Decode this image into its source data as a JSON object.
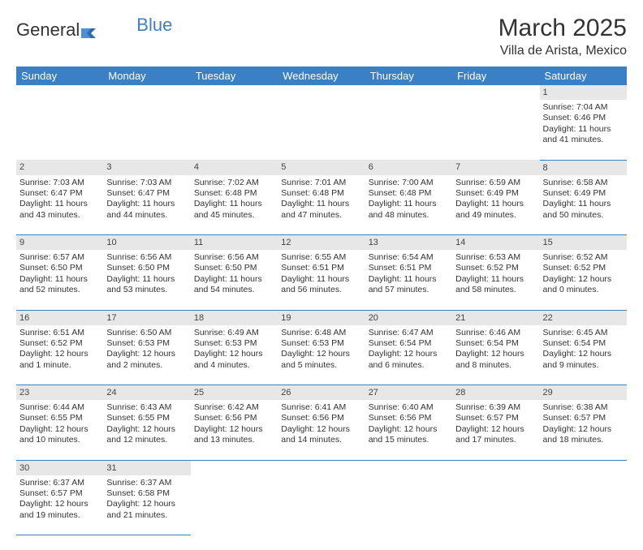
{
  "brand": {
    "part1": "General",
    "part2": "Blue"
  },
  "title": "March 2025",
  "location": "Villa de Arista, Mexico",
  "weekdays": [
    "Sunday",
    "Monday",
    "Tuesday",
    "Wednesday",
    "Thursday",
    "Friday",
    "Saturday"
  ],
  "colors": {
    "header_bg": "#3b7fc4",
    "header_fg": "#ffffff",
    "daynum_bg": "#e7e7e7",
    "border": "#3b7fc4",
    "page_bg": "#ffffff",
    "text": "#333333"
  },
  "fonts": {
    "title_pt": 30,
    "location_pt": 16,
    "weekday_pt": 13,
    "cell_pt": 10.5
  },
  "weeks": [
    {
      "nums": [
        "",
        "",
        "",
        "",
        "",
        "",
        "1"
      ],
      "cells": [
        null,
        null,
        null,
        null,
        null,
        null,
        {
          "sr": "Sunrise: 7:04 AM",
          "ss": "Sunset: 6:46 PM",
          "d1": "Daylight: 11 hours",
          "d2": "and 41 minutes."
        }
      ]
    },
    {
      "nums": [
        "2",
        "3",
        "4",
        "5",
        "6",
        "7",
        "8"
      ],
      "cells": [
        {
          "sr": "Sunrise: 7:03 AM",
          "ss": "Sunset: 6:47 PM",
          "d1": "Daylight: 11 hours",
          "d2": "and 43 minutes."
        },
        {
          "sr": "Sunrise: 7:03 AM",
          "ss": "Sunset: 6:47 PM",
          "d1": "Daylight: 11 hours",
          "d2": "and 44 minutes."
        },
        {
          "sr": "Sunrise: 7:02 AM",
          "ss": "Sunset: 6:48 PM",
          "d1": "Daylight: 11 hours",
          "d2": "and 45 minutes."
        },
        {
          "sr": "Sunrise: 7:01 AM",
          "ss": "Sunset: 6:48 PM",
          "d1": "Daylight: 11 hours",
          "d2": "and 47 minutes."
        },
        {
          "sr": "Sunrise: 7:00 AM",
          "ss": "Sunset: 6:48 PM",
          "d1": "Daylight: 11 hours",
          "d2": "and 48 minutes."
        },
        {
          "sr": "Sunrise: 6:59 AM",
          "ss": "Sunset: 6:49 PM",
          "d1": "Daylight: 11 hours",
          "d2": "and 49 minutes."
        },
        {
          "sr": "Sunrise: 6:58 AM",
          "ss": "Sunset: 6:49 PM",
          "d1": "Daylight: 11 hours",
          "d2": "and 50 minutes."
        }
      ]
    },
    {
      "nums": [
        "9",
        "10",
        "11",
        "12",
        "13",
        "14",
        "15"
      ],
      "cells": [
        {
          "sr": "Sunrise: 6:57 AM",
          "ss": "Sunset: 6:50 PM",
          "d1": "Daylight: 11 hours",
          "d2": "and 52 minutes."
        },
        {
          "sr": "Sunrise: 6:56 AM",
          "ss": "Sunset: 6:50 PM",
          "d1": "Daylight: 11 hours",
          "d2": "and 53 minutes."
        },
        {
          "sr": "Sunrise: 6:56 AM",
          "ss": "Sunset: 6:50 PM",
          "d1": "Daylight: 11 hours",
          "d2": "and 54 minutes."
        },
        {
          "sr": "Sunrise: 6:55 AM",
          "ss": "Sunset: 6:51 PM",
          "d1": "Daylight: 11 hours",
          "d2": "and 56 minutes."
        },
        {
          "sr": "Sunrise: 6:54 AM",
          "ss": "Sunset: 6:51 PM",
          "d1": "Daylight: 11 hours",
          "d2": "and 57 minutes."
        },
        {
          "sr": "Sunrise: 6:53 AM",
          "ss": "Sunset: 6:52 PM",
          "d1": "Daylight: 11 hours",
          "d2": "and 58 minutes."
        },
        {
          "sr": "Sunrise: 6:52 AM",
          "ss": "Sunset: 6:52 PM",
          "d1": "Daylight: 12 hours",
          "d2": "and 0 minutes."
        }
      ]
    },
    {
      "nums": [
        "16",
        "17",
        "18",
        "19",
        "20",
        "21",
        "22"
      ],
      "cells": [
        {
          "sr": "Sunrise: 6:51 AM",
          "ss": "Sunset: 6:52 PM",
          "d1": "Daylight: 12 hours",
          "d2": "and 1 minute."
        },
        {
          "sr": "Sunrise: 6:50 AM",
          "ss": "Sunset: 6:53 PM",
          "d1": "Daylight: 12 hours",
          "d2": "and 2 minutes."
        },
        {
          "sr": "Sunrise: 6:49 AM",
          "ss": "Sunset: 6:53 PM",
          "d1": "Daylight: 12 hours",
          "d2": "and 4 minutes."
        },
        {
          "sr": "Sunrise: 6:48 AM",
          "ss": "Sunset: 6:53 PM",
          "d1": "Daylight: 12 hours",
          "d2": "and 5 minutes."
        },
        {
          "sr": "Sunrise: 6:47 AM",
          "ss": "Sunset: 6:54 PM",
          "d1": "Daylight: 12 hours",
          "d2": "and 6 minutes."
        },
        {
          "sr": "Sunrise: 6:46 AM",
          "ss": "Sunset: 6:54 PM",
          "d1": "Daylight: 12 hours",
          "d2": "and 8 minutes."
        },
        {
          "sr": "Sunrise: 6:45 AM",
          "ss": "Sunset: 6:54 PM",
          "d1": "Daylight: 12 hours",
          "d2": "and 9 minutes."
        }
      ]
    },
    {
      "nums": [
        "23",
        "24",
        "25",
        "26",
        "27",
        "28",
        "29"
      ],
      "cells": [
        {
          "sr": "Sunrise: 6:44 AM",
          "ss": "Sunset: 6:55 PM",
          "d1": "Daylight: 12 hours",
          "d2": "and 10 minutes."
        },
        {
          "sr": "Sunrise: 6:43 AM",
          "ss": "Sunset: 6:55 PM",
          "d1": "Daylight: 12 hours",
          "d2": "and 12 minutes."
        },
        {
          "sr": "Sunrise: 6:42 AM",
          "ss": "Sunset: 6:56 PM",
          "d1": "Daylight: 12 hours",
          "d2": "and 13 minutes."
        },
        {
          "sr": "Sunrise: 6:41 AM",
          "ss": "Sunset: 6:56 PM",
          "d1": "Daylight: 12 hours",
          "d2": "and 14 minutes."
        },
        {
          "sr": "Sunrise: 6:40 AM",
          "ss": "Sunset: 6:56 PM",
          "d1": "Daylight: 12 hours",
          "d2": "and 15 minutes."
        },
        {
          "sr": "Sunrise: 6:39 AM",
          "ss": "Sunset: 6:57 PM",
          "d1": "Daylight: 12 hours",
          "d2": "and 17 minutes."
        },
        {
          "sr": "Sunrise: 6:38 AM",
          "ss": "Sunset: 6:57 PM",
          "d1": "Daylight: 12 hours",
          "d2": "and 18 minutes."
        }
      ]
    },
    {
      "nums": [
        "30",
        "31",
        "",
        "",
        "",
        "",
        ""
      ],
      "cells": [
        {
          "sr": "Sunrise: 6:37 AM",
          "ss": "Sunset: 6:57 PM",
          "d1": "Daylight: 12 hours",
          "d2": "and 19 minutes."
        },
        {
          "sr": "Sunrise: 6:37 AM",
          "ss": "Sunset: 6:58 PM",
          "d1": "Daylight: 12 hours",
          "d2": "and 21 minutes."
        },
        null,
        null,
        null,
        null,
        null
      ]
    }
  ]
}
